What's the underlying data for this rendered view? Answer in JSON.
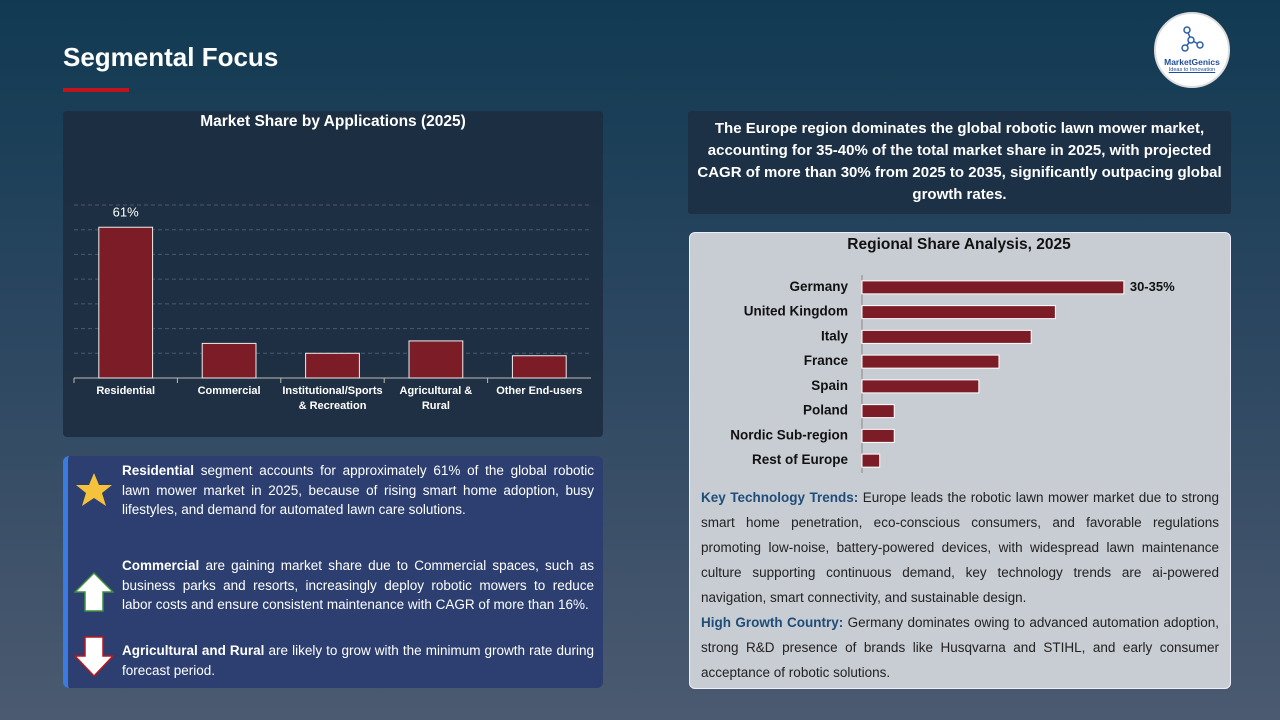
{
  "header": {
    "title": "Segmental Focus",
    "logo": {
      "name": "MarketGenics",
      "tagline": "Ideas to Innovation"
    }
  },
  "chart_data": [
    {
      "type": "bar",
      "title": "Market Share by Applications (2025)",
      "categories": [
        "Residential",
        "Commercial",
        "Institutional/Sports & Recreation",
        "Agricultural & Rural",
        "Other End-users"
      ],
      "values": [
        61,
        14,
        10,
        15,
        9
      ],
      "value_labels": [
        "61%",
        null,
        null,
        null,
        null
      ],
      "color": "#7b1c26",
      "ylim": [
        0,
        70
      ],
      "yticks": [
        0,
        10,
        20,
        30,
        40,
        50,
        60,
        70
      ],
      "grid": true,
      "tick_labels": false
    },
    {
      "type": "barh",
      "title": "Regional Share Analysis, 2025",
      "categories": [
        "Germany",
        "United Kingdom",
        "Italy",
        "France",
        "Spain",
        "Poland",
        "Nordic Sub-region",
        "Rest of Europe"
      ],
      "values": [
        32.5,
        24,
        21,
        17,
        14.5,
        4,
        4,
        2.2
      ],
      "value_labels": [
        "30-35%",
        null,
        null,
        null,
        null,
        null,
        null,
        null
      ],
      "color": "#7b1c26",
      "xlim": [
        0,
        35
      ]
    }
  ],
  "callout": "The Europe region dominates the global robotic lawn mower market, accounting for 35-40% of the total market share in 2025, with projected CAGR of more than 30% from 2025 to 2035, significantly outpacing global growth rates.",
  "highlights": [
    {
      "bold": "Residential",
      "text": "segment accounts for approximately 61% of the global robotic lawn mower market in 2025, because of rising smart home adoption, busy lifestyles, and demand for automated lawn care solutions."
    },
    {
      "bold": "Commercial",
      "text": "are gaining market share due to Commercial spaces, such as business parks and resorts, increasingly deploy robotic mowers to reduce labor costs and ensure consistent maintenance with CAGR of more than 16%."
    },
    {
      "bold": "Agricultural and Rural",
      "text": "are likely to grow with the minimum growth rate during forecast period."
    }
  ],
  "trends": [
    {
      "label": "Key Technology Trends:",
      "text": "Europe leads the robotic lawn mower market due to strong smart home penetration, eco-conscious consumers, and favorable regulations promoting low-noise, battery-powered devices, with widespread lawn maintenance culture supporting continuous demand, key technology trends are ai-powered navigation, smart connectivity, and sustainable design."
    },
    {
      "label": "High Growth Country:",
      "text": "Germany dominates owing to advanced automation adoption, strong R&D presence of brands like Husqvarna and STIHL, and early consumer acceptance of robotic solutions."
    }
  ]
}
